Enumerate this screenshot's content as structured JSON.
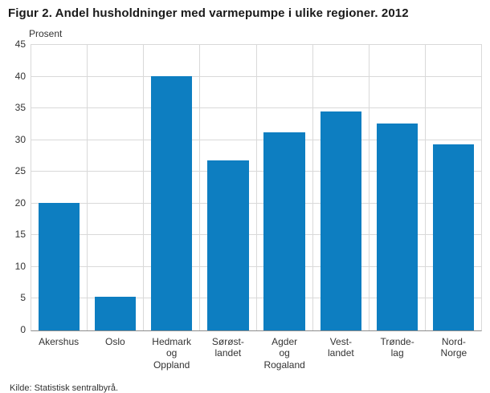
{
  "title": "Figur 2. Andel husholdninger med varmepumpe i ulike regioner. 2012",
  "source": "Kilde: Statistisk sentralbyrå.",
  "chart_data": {
    "type": "bar",
    "title": "Figur 2. Andel husholdninger med varmepumpe i ulike regioner. 2012",
    "categories": [
      "Akershus",
      "Oslo",
      "Hedmark og Oppland",
      "Sørøstlandet",
      "Agder og Rogaland",
      "Vestlandet",
      "Trøndelag",
      "Nord-Norge"
    ],
    "category_labels": [
      "Akershus",
      "Oslo",
      "Hedmark\nog\nOppland",
      "Sørøst-\nlandet",
      "Agder\nog\nRogaland",
      "Vest-\nlandet",
      "Trønde-\nlag",
      "Nord-\nNorge"
    ],
    "values": [
      20.1,
      5.3,
      40.1,
      26.8,
      31.2,
      34.5,
      32.6,
      29.3
    ],
    "xlabel": "",
    "ylabel": "Prosent",
    "ylim": [
      0,
      45
    ],
    "ytick_step": 5,
    "bar_color": "#0d7ec1",
    "grid": true,
    "legend": false
  }
}
